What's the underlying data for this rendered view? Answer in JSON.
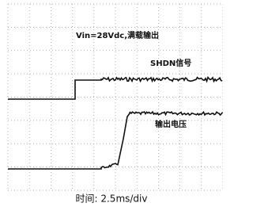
{
  "figure": {
    "title": "Vin=28Vdc,满载输出",
    "labels": [
      "SHDN信号",
      "输出电压"
    ],
    "caption": "时间: 2.5ms/div"
  }
}
